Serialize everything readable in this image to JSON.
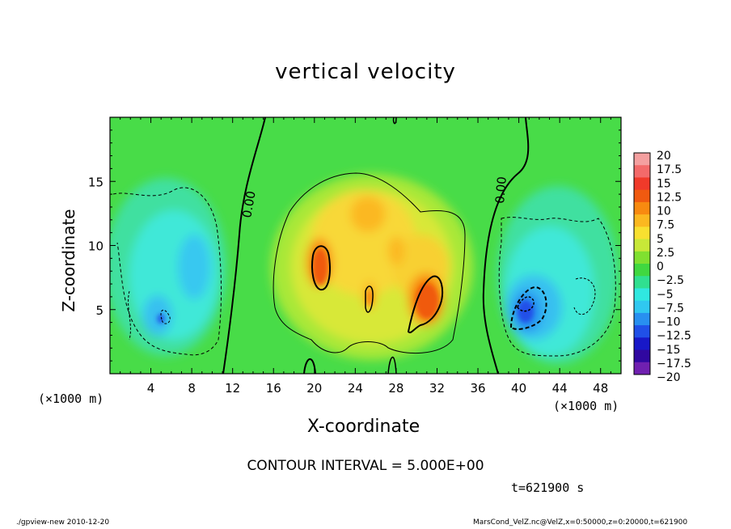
{
  "chart_data": {
    "type": "heatmap",
    "title": "vertical velocity",
    "xlabel": "X-coordinate",
    "ylabel": "Z-coordinate",
    "x_unit": "(×1000 m)",
    "y_unit": "(×1000 m)",
    "x_range": [
      0,
      50
    ],
    "y_range": [
      0,
      20
    ],
    "x_ticks": [
      "4",
      "8",
      "12",
      "16",
      "20",
      "24",
      "28",
      "32",
      "36",
      "40",
      "44",
      "48"
    ],
    "y_ticks": [
      "5",
      "10",
      "15"
    ],
    "contour_labels": [
      "0.00",
      "0.00"
    ],
    "colorbar": {
      "labels": [
        "20",
        "17.5",
        "15",
        "12.5",
        "10",
        "7.5",
        "5",
        "2.5",
        "0",
        "−2.5",
        "−5",
        "−7.5",
        "−10",
        "−12.5",
        "−15",
        "−17.5",
        "−20"
      ],
      "colors": [
        "#f4a0a0",
        "#f36a6a",
        "#f03a2a",
        "#f05a10",
        "#f88a10",
        "#fbb820",
        "#f8e030",
        "#c8e838",
        "#80e030",
        "#40d840",
        "#30e090",
        "#30e8e0",
        "#30c8f0",
        "#2890f0",
        "#2050e8",
        "#1818c8",
        "#3008a0",
        "#7020b0"
      ]
    }
  },
  "contour_interval": "CONTOUR INTERVAL = 5.000E+00",
  "time_label": "t=621900 s",
  "footer_left": "./gpview-new  2010-12-20",
  "footer_right": "MarsCond_VelZ.nc@VelZ,x=0:50000,z=0:20000,t=621900"
}
